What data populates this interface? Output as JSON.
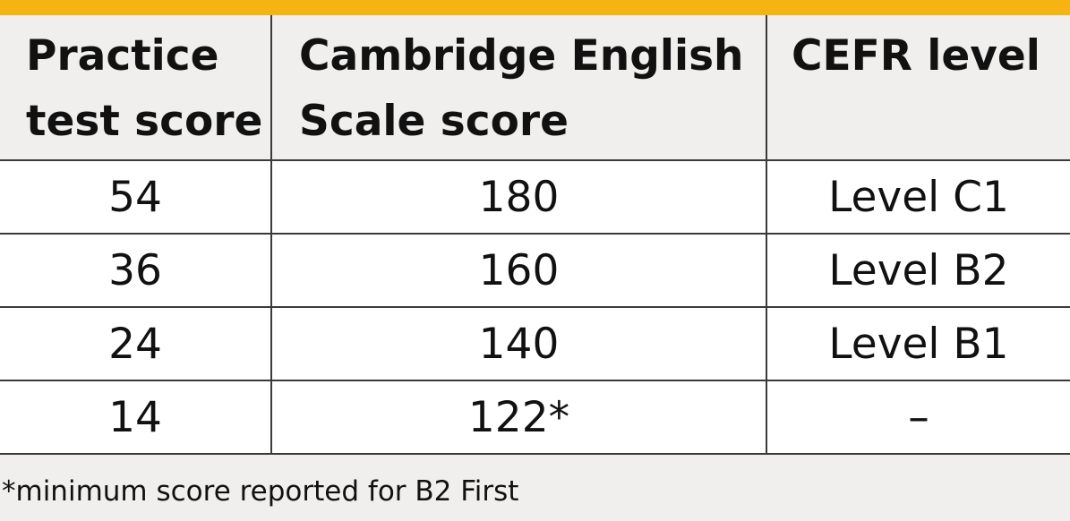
{
  "colors": {
    "accent_bar": "#f5b412",
    "header_background": "#f0efed",
    "body_background": "#ffffff",
    "border": "#3a3a3a",
    "text": "#111111"
  },
  "table": {
    "headers": {
      "practice_line1": "Practice",
      "practice_line2": "test score",
      "scale_line1": "Cambridge English",
      "scale_line2": "Scale score",
      "cefr": "CEFR level"
    },
    "rows": [
      {
        "practice": "54",
        "scale": "180",
        "cefr": "Level C1"
      },
      {
        "practice": "36",
        "scale": "160",
        "cefr": "Level B2"
      },
      {
        "practice": "24",
        "scale": "140",
        "cefr": "Level B1"
      },
      {
        "practice": "14",
        "scale": "122*",
        "cefr": "–"
      }
    ]
  },
  "footnote": "*minimum score reported for B2 First"
}
